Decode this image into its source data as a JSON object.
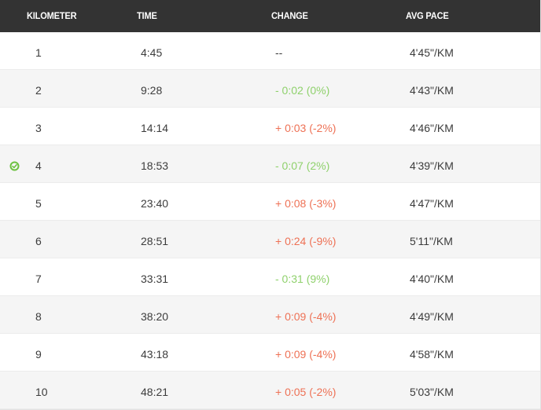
{
  "header": {
    "kilometer": "KILOMETER",
    "time": "TIME",
    "change": "CHANGE",
    "avg_pace": "AVG PACE"
  },
  "colors": {
    "faster": "#8fd16c",
    "slower": "#ee7155",
    "header_bg": "#333333",
    "best_marker": "#6cc140"
  },
  "splits": [
    {
      "km": "1",
      "time": "4:45",
      "change": "--",
      "trend": "none",
      "pace": "4'45\"/KM"
    },
    {
      "km": "2",
      "time": "9:28",
      "change": "- 0:02 (0%)",
      "trend": "faster",
      "pace": "4'43\"/KM"
    },
    {
      "km": "3",
      "time": "14:14",
      "change": "+ 0:03 (-2%)",
      "trend": "slower",
      "pace": "4'46\"/KM"
    },
    {
      "km": "4",
      "time": "18:53",
      "change": "- 0:07 (2%)",
      "trend": "faster",
      "pace": "4'39\"/KM",
      "best": true,
      "icon": "check-circle-icon"
    },
    {
      "km": "5",
      "time": "23:40",
      "change": "+ 0:08 (-3%)",
      "trend": "slower",
      "pace": "4'47\"/KM"
    },
    {
      "km": "6",
      "time": "28:51",
      "change": "+ 0:24 (-9%)",
      "trend": "slower",
      "pace": "5'11\"/KM"
    },
    {
      "km": "7",
      "time": "33:31",
      "change": "- 0:31 (9%)",
      "trend": "faster",
      "pace": "4'40\"/KM"
    },
    {
      "km": "8",
      "time": "38:20",
      "change": "+ 0:09 (-4%)",
      "trend": "slower",
      "pace": "4'49\"/KM"
    },
    {
      "km": "9",
      "time": "43:18",
      "change": "+ 0:09 (-4%)",
      "trend": "slower",
      "pace": "4'58\"/KM"
    },
    {
      "km": "10",
      "time": "48:21",
      "change": "+ 0:05 (-2%)",
      "trend": "slower",
      "pace": "5'03\"/KM"
    }
  ]
}
